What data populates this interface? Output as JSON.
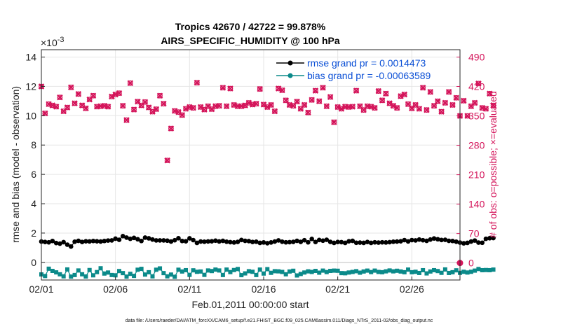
{
  "chart_data": {
    "type": "scatter",
    "title_line1": "Tropics 42670 / 42722 = 99.878%",
    "title_line2": "AIRS_SPECIFIC_HUMIDITY @ 100 hPa",
    "xlabel": "Feb.01,2011 00:00:00 start",
    "ylabel_left": "rmse and bias (model - observation)",
    "ylabel_right": "# of obs: o=possible; ×=evaluated",
    "y_exponent_label": "×10",
    "y_exponent_power": "-3",
    "x_ticks": [
      {
        "day": 0,
        "label": "02/01"
      },
      {
        "day": 5,
        "label": "02/06"
      },
      {
        "day": 10,
        "label": "02/11"
      },
      {
        "day": 15,
        "label": "02/16"
      },
      {
        "day": 20,
        "label": "02/21"
      },
      {
        "day": 25,
        "label": "02/26"
      }
    ],
    "xlim": [
      0,
      28.25
    ],
    "ylim_left": [
      -0.0012,
      0.0145
    ],
    "yticks_left": [
      {
        "v": 0,
        "label": "0"
      },
      {
        "v": 0.002,
        "label": "2"
      },
      {
        "v": 0.004,
        "label": "4"
      },
      {
        "v": 0.006,
        "label": "6"
      },
      {
        "v": 0.008,
        "label": "8"
      },
      {
        "v": 0.01,
        "label": "10"
      },
      {
        "v": 0.012,
        "label": "12"
      },
      {
        "v": 0.014,
        "label": "14"
      }
    ],
    "ylim_right": [
      -40.5,
      507.5
    ],
    "yticks_right": [
      {
        "v": 0,
        "label": "0"
      },
      {
        "v": 70,
        "label": "70"
      },
      {
        "v": 140,
        "label": "140"
      },
      {
        "v": 210,
        "label": "210"
      },
      {
        "v": 280,
        "label": "280"
      },
      {
        "v": 350,
        "label": "350"
      },
      {
        "v": 420,
        "label": "420"
      },
      {
        "v": 490,
        "label": "490"
      }
    ],
    "legend": {
      "placement": "top-right",
      "entries": [
        {
          "label": "rmse grand pr = 0.0014473",
          "color": "#000000"
        },
        {
          "label": "bias grand pr = -0.00063589",
          "color": "#0b8a8a"
        }
      ]
    },
    "series": [
      {
        "name": "rmse",
        "color": "#000000",
        "start_day": 0,
        "step_days": 0.25,
        "values": [
          0.00142,
          0.00139,
          0.00137,
          0.00146,
          0.00132,
          0.00128,
          0.00138,
          0.00121,
          0.00108,
          0.00141,
          0.00147,
          0.00139,
          0.00144,
          0.00143,
          0.00146,
          0.00144,
          0.00142,
          0.00146,
          0.00149,
          0.0015,
          0.00162,
          0.00154,
          0.00179,
          0.00169,
          0.00161,
          0.00167,
          0.00158,
          0.00146,
          0.00169,
          0.00164,
          0.00156,
          0.0015,
          0.0015,
          0.0015,
          0.00148,
          0.00142,
          0.00151,
          0.00165,
          0.00146,
          0.00144,
          0.00164,
          0.00152,
          0.00133,
          0.00142,
          0.00141,
          0.00143,
          0.00144,
          0.00148,
          0.00143,
          0.00147,
          0.00141,
          0.00138,
          0.00136,
          0.0014,
          0.00153,
          0.00147,
          0.00145,
          0.00139,
          0.00141,
          0.00133,
          0.00136,
          0.00131,
          0.00136,
          0.00142,
          0.0015,
          0.00141,
          0.00137,
          0.00138,
          0.0014,
          0.00147,
          0.0014,
          0.00151,
          0.00137,
          0.0016,
          0.00139,
          0.00153,
          0.00148,
          0.00154,
          0.0014,
          0.00133,
          0.00139,
          0.00138,
          0.00133,
          0.00144,
          0.00147,
          0.00134,
          0.00135,
          0.00133,
          0.00139,
          0.00133,
          0.00137,
          0.00135,
          0.00137,
          0.00136,
          0.00138,
          0.00141,
          0.00142,
          0.00144,
          0.00152,
          0.00143,
          0.00152,
          0.0015,
          0.00156,
          0.00151,
          0.00147,
          0.00156,
          0.00163,
          0.00158,
          0.00153,
          0.00154,
          0.00147,
          0.00146,
          0.00141,
          0.00135,
          0.0013,
          0.00133,
          0.00142,
          0.00149,
          0.00135,
          0.00134,
          0.00161,
          0.00165,
          0.00166
        ]
      },
      {
        "name": "bias",
        "color": "#0b8a8a",
        "start_day": 0,
        "step_days": 0.25,
        "values": [
          -0.00082,
          -0.00093,
          -0.00043,
          -0.00058,
          -0.00068,
          -0.00081,
          -0.00095,
          -0.00048,
          -0.00097,
          -0.00086,
          -0.00055,
          -0.00081,
          -0.00096,
          -0.00052,
          -0.00088,
          -0.00066,
          -0.0004,
          -0.00076,
          -0.00069,
          -0.00086,
          -0.00088,
          -0.00059,
          -0.00073,
          -0.00097,
          -0.00078,
          -0.00092,
          -0.0005,
          -0.00044,
          -0.00083,
          -0.00067,
          -0.00095,
          -0.0005,
          -0.00041,
          -0.00073,
          -0.00095,
          -0.00083,
          -0.00098,
          -0.0005,
          -0.00062,
          -0.00053,
          -0.00085,
          -0.00054,
          -0.00064,
          -0.00062,
          -0.00085,
          -0.00055,
          -0.00059,
          -0.00049,
          -0.00055,
          -0.00086,
          -0.00049,
          -0.00066,
          -0.00052,
          -0.00045,
          -0.00087,
          -0.00075,
          -0.0006,
          -0.00064,
          -0.00086,
          -0.00049,
          -0.00076,
          -0.00046,
          -0.00071,
          -0.0006,
          -0.00061,
          -0.00065,
          -0.00081,
          -0.00062,
          -0.00057,
          -0.00089,
          -0.00079,
          -0.00069,
          -0.00061,
          -0.00065,
          -0.00058,
          -0.0007,
          -0.00056,
          -0.00066,
          -0.00058,
          -0.00056,
          -0.00057,
          -0.00073,
          -0.00074,
          -0.00069,
          -0.00065,
          -0.0006,
          -0.0007,
          -0.00062,
          -0.00056,
          -0.00066,
          -0.00056,
          -0.00065,
          -0.00067,
          -0.00061,
          -0.00055,
          -0.00061,
          -0.00057,
          -0.00062,
          -0.00067,
          -0.00049,
          -0.00067,
          -0.00064,
          -0.00072,
          -0.00053,
          -0.00075,
          -0.00062,
          -0.00053,
          -0.00059,
          -0.00071,
          -0.00048,
          -0.00072,
          -0.00067,
          -0.00054,
          -0.00071,
          -0.00064,
          -0.00069,
          -0.00064,
          -0.00056,
          -0.00045,
          -0.00053,
          -0.00052,
          -0.00053,
          -0.00049
        ]
      },
      {
        "name": "nobs_evaluated",
        "color": "#d4145a",
        "axis": "right",
        "start_day": 0,
        "step_days": 0.25,
        "values": [
          420,
          356,
          378,
          375,
          372,
          394,
          361,
          370,
          418,
          380,
          402,
          375,
          368,
          389,
          398,
          372,
          373,
          374,
          372,
          396,
          401,
          404,
          374,
          340,
          428,
          365,
          384,
          375,
          383,
          370,
          360,
          366,
          398,
          379,
          244,
          320,
          362,
          359,
          352,
          367,
          371,
          369,
          429,
          371,
          365,
          373,
          366,
          373,
          374,
          417,
          373,
          415,
          376,
          373,
          373,
          375,
          381,
          377,
          379,
          414,
          377,
          371,
          376,
          361,
          415,
          411,
          387,
          376,
          374,
          384,
          367,
          376,
          358,
          388,
          410,
          385,
          417,
          373,
          395,
          335,
          371,
          367,
          372,
          371,
          372,
          410,
          373,
          364,
          373,
          372,
          369,
          409,
          387,
          403,
          380,
          374,
          369,
          397,
          401,
          378,
          368,
          376,
          367,
          417,
          364,
          407,
          374,
          385,
          360,
          381,
          407,
          376,
          393,
          350,
          386,
          350,
          373,
          381,
          427,
          369,
          367,
          403,
          375
        ]
      },
      {
        "name": "nobs_possible",
        "color": "#d4145a",
        "axis": "right",
        "start_day": 0,
        "step_days": 0.25,
        "values": [
          420,
          356,
          378,
          375,
          372,
          394,
          361,
          370,
          418,
          380,
          402,
          375,
          368,
          389,
          398,
          372,
          373,
          374,
          372,
          396,
          401,
          404,
          374,
          340,
          428,
          365,
          384,
          375,
          383,
          370,
          360,
          366,
          398,
          379,
          244,
          320,
          362,
          359,
          352,
          367,
          371,
          369,
          429,
          371,
          365,
          373,
          366,
          373,
          374,
          417,
          373,
          415,
          376,
          373,
          373,
          375,
          381,
          377,
          379,
          414,
          377,
          371,
          376,
          361,
          415,
          411,
          387,
          376,
          374,
          384,
          367,
          376,
          358,
          388,
          410,
          385,
          417,
          373,
          395,
          335,
          371,
          367,
          372,
          371,
          372,
          410,
          373,
          364,
          373,
          372,
          369,
          409,
          387,
          403,
          380,
          374,
          369,
          397,
          401,
          378,
          368,
          376,
          367,
          417,
          364,
          407,
          374,
          385,
          360,
          381,
          407,
          376,
          393,
          350,
          386,
          350,
          373,
          381,
          427,
          369,
          367,
          403,
          375
        ]
      }
    ],
    "last_point": {
      "day": 28.25,
      "possible": 0,
      "evaluated": 0
    }
  },
  "footnote": "data file: /Users/raeder/DAI/ATM_forcXX/CAM6_setup/f.e21.FHIST_BGC.f09_025.CAM6assim.011/Diags_NTrS_2011-02/obs_diag_output.nc"
}
